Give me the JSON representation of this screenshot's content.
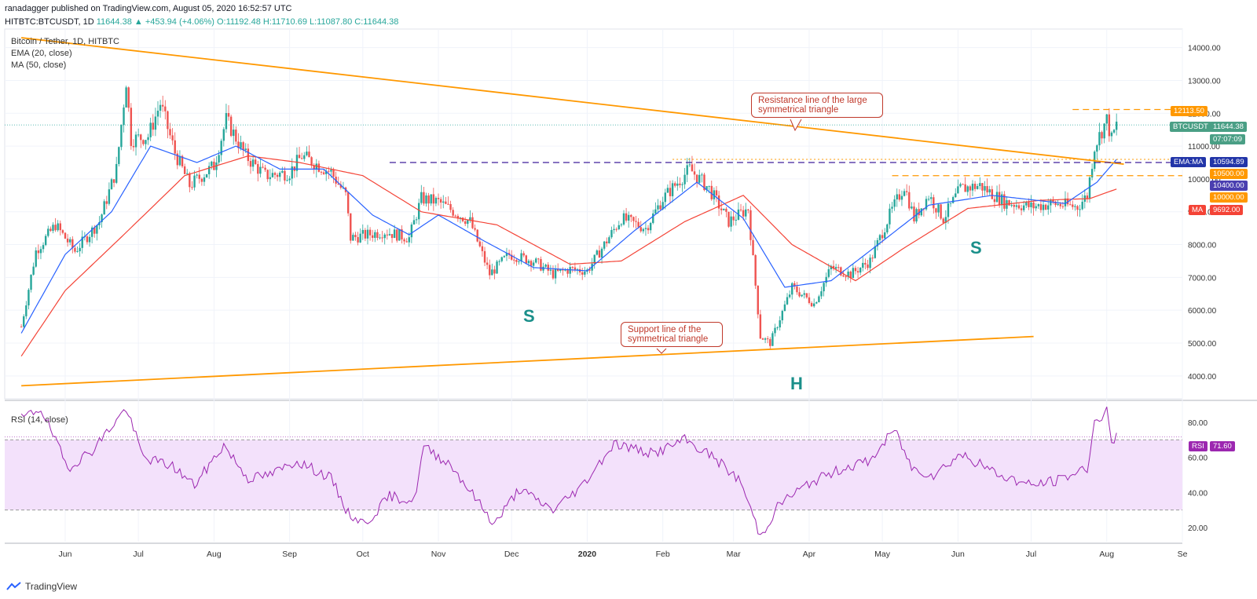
{
  "header": {
    "publisher": "ranadagger published on TradingView.com, August 05, 2020 16:52:57 UTC",
    "symbol": "HITBTC:BTCUSDT, 1D",
    "last": "11644.38",
    "change": "▲ +453.94 (+4.06%)",
    "ohlc": "O:11192.48 H:11710.69 L:11087.80 C:11644.38"
  },
  "legend": {
    "title": "Bitcoin / Tether, 1D, HITBTC",
    "ema": "EMA (20, close)",
    "ma": "MA (50, close)",
    "rsi": "RSI (14, close)"
  },
  "tags": {
    "resistance_level": "12113.50",
    "btc_label": "BTCUSDT",
    "btc_price": "11644.38",
    "countdown": "07:07:09",
    "ema_label": "EMA:MA",
    "ema_value": "10594.89",
    "level_10500": "10500.00",
    "level_10400": "10400.00",
    "level_10000": "10000.00",
    "ma_label": "MA",
    "ma_value": "9692.00",
    "rsi_label": "RSI",
    "rsi_value": "71.60"
  },
  "annotations": {
    "resistance": "Resistance line of the large symmetrical triangle",
    "support": "Support line of the symmetrical triangle",
    "s_left": "S",
    "h_mid": "H",
    "s_right": "S"
  },
  "footer": {
    "brand": "TradingView"
  },
  "colors": {
    "up": "#26a69a",
    "down": "#ef5350",
    "ema": "#2962ff",
    "ma": "#f44336",
    "trend": "#ff9800",
    "dashed_purple": "#3f1d9b",
    "rsi": "#9c27b0",
    "rsi_band": "#f3e1fb"
  },
  "chart_data": {
    "type": "candlestick",
    "price_axis": {
      "ticks": [
        4000,
        5000,
        6000,
        7000,
        8000,
        9000,
        10000,
        11000,
        12000,
        13000,
        14000
      ],
      "tick_labels": [
        "4000.00",
        "5000.00",
        "6000.00",
        "7000.00",
        "8000.00",
        "9000.00",
        "10000.00",
        "11000.00",
        "12000.00",
        "13000.00",
        "14000.00"
      ]
    },
    "rsi_axis": {
      "ticks": [
        20,
        40,
        60,
        80
      ],
      "tick_labels": [
        "20.00",
        "40.00",
        "60.00",
        "80.00"
      ],
      "upper": 70,
      "lower": 30
    },
    "x_axis": {
      "labels": [
        "Jun",
        "Jul",
        "Aug",
        "Sep",
        "Oct",
        "Nov",
        "Dec",
        "2020",
        "Feb",
        "Mar",
        "Apr",
        "May",
        "Jun",
        "Jul",
        "Aug",
        "Se"
      ],
      "dates": [
        "2019-06-01",
        "2019-07-01",
        "2019-08-01",
        "2019-09-01",
        "2019-10-01",
        "2019-11-01",
        "2019-12-01",
        "2020-01-01",
        "2020-02-01",
        "2020-03-01",
        "2020-04-01",
        "2020-05-01",
        "2020-06-01",
        "2020-07-01",
        "2020-08-01",
        "2020-09-01"
      ]
    },
    "close_path": [
      [
        "2019-05-14",
        5500
      ],
      [
        "2019-05-20",
        7800
      ],
      [
        "2019-05-28",
        8600
      ],
      [
        "2019-06-05",
        7800
      ],
      [
        "2019-06-15",
        8700
      ],
      [
        "2019-06-22",
        10300
      ],
      [
        "2019-06-26",
        13000
      ],
      [
        "2019-06-28",
        11200
      ],
      [
        "2019-07-05",
        11300
      ],
      [
        "2019-07-10",
        12300
      ],
      [
        "2019-07-16",
        10800
      ],
      [
        "2019-07-22",
        9800
      ],
      [
        "2019-08-01",
        10400
      ],
      [
        "2019-08-06",
        11800
      ],
      [
        "2019-08-14",
        10700
      ],
      [
        "2019-08-22",
        10100
      ],
      [
        "2019-09-01",
        10200
      ],
      [
        "2019-09-06",
        10700
      ],
      [
        "2019-09-18",
        10200
      ],
      [
        "2019-09-24",
        9500
      ],
      [
        "2019-09-26",
        8200
      ],
      [
        "2019-10-10",
        8400
      ],
      [
        "2019-10-20",
        8200
      ],
      [
        "2019-10-25",
        9400
      ],
      [
        "2019-11-01",
        9300
      ],
      [
        "2019-11-14",
        8700
      ],
      [
        "2019-11-22",
        7100
      ],
      [
        "2019-11-30",
        7700
      ],
      [
        "2019-12-10",
        7500
      ],
      [
        "2019-12-18",
        7100
      ],
      [
        "2019-12-25",
        7250
      ],
      [
        "2020-01-01",
        7200
      ],
      [
        "2020-01-08",
        8000
      ],
      [
        "2020-01-15",
        8800
      ],
      [
        "2020-01-25",
        8500
      ],
      [
        "2020-02-01",
        9400
      ],
      [
        "2020-02-12",
        10300
      ],
      [
        "2020-02-20",
        9700
      ],
      [
        "2020-02-28",
        8700
      ],
      [
        "2020-03-07",
        9100
      ],
      [
        "2020-03-12",
        5200
      ],
      [
        "2020-03-16",
        5000
      ],
      [
        "2020-03-25",
        6700
      ],
      [
        "2020-04-03",
        6200
      ],
      [
        "2020-04-10",
        7300
      ],
      [
        "2020-04-18",
        7100
      ],
      [
        "2020-04-26",
        7500
      ],
      [
        "2020-05-04",
        8900
      ],
      [
        "2020-05-10",
        9800
      ],
      [
        "2020-05-14",
        8800
      ],
      [
        "2020-05-20",
        9500
      ],
      [
        "2020-05-26",
        8800
      ],
      [
        "2020-06-02",
        9700
      ],
      [
        "2020-06-10",
        9800
      ],
      [
        "2020-06-20",
        9300
      ],
      [
        "2020-07-01",
        9150
      ],
      [
        "2020-07-10",
        9250
      ],
      [
        "2020-07-20",
        9150
      ],
      [
        "2020-07-24",
        9500
      ],
      [
        "2020-07-27",
        11000
      ],
      [
        "2020-08-01",
        11800
      ],
      [
        "2020-08-03",
        11200
      ],
      [
        "2020-08-05",
        11644
      ]
    ],
    "ema20": [
      [
        "2019-05-14",
        5300
      ],
      [
        "2019-06-01",
        7700
      ],
      [
        "2019-06-20",
        9000
      ],
      [
        "2019-07-06",
        11000
      ],
      [
        "2019-07-25",
        10500
      ],
      [
        "2019-08-10",
        11000
      ],
      [
        "2019-08-28",
        10300
      ],
      [
        "2019-09-15",
        10300
      ],
      [
        "2019-10-05",
        8900
      ],
      [
        "2019-10-20",
        8300
      ],
      [
        "2019-11-01",
        8900
      ],
      [
        "2019-11-20",
        8100
      ],
      [
        "2019-12-10",
        7300
      ],
      [
        "2020-01-01",
        7200
      ],
      [
        "2020-01-20",
        8400
      ],
      [
        "2020-02-15",
        9900
      ],
      [
        "2020-03-05",
        8800
      ],
      [
        "2020-03-22",
        6700
      ],
      [
        "2020-04-10",
        6900
      ],
      [
        "2020-05-01",
        8100
      ],
      [
        "2020-05-20",
        9200
      ],
      [
        "2020-06-15",
        9500
      ],
      [
        "2020-07-15",
        9250
      ],
      [
        "2020-07-28",
        9900
      ],
      [
        "2020-08-05",
        10595
      ]
    ],
    "ma50": [
      [
        "2019-05-14",
        4600
      ],
      [
        "2019-06-01",
        6600
      ],
      [
        "2019-06-25",
        8300
      ],
      [
        "2019-07-20",
        10100
      ],
      [
        "2019-08-15",
        10700
      ],
      [
        "2019-09-05",
        10500
      ],
      [
        "2019-10-01",
        10100
      ],
      [
        "2019-10-25",
        9000
      ],
      [
        "2019-11-25",
        8600
      ],
      [
        "2019-12-25",
        7400
      ],
      [
        "2020-01-15",
        7500
      ],
      [
        "2020-02-10",
        8700
      ],
      [
        "2020-03-05",
        9500
      ],
      [
        "2020-03-25",
        8000
      ],
      [
        "2020-04-20",
        6900
      ],
      [
        "2020-05-10",
        7900
      ],
      [
        "2020-06-05",
        9100
      ],
      [
        "2020-07-05",
        9350
      ],
      [
        "2020-07-25",
        9400
      ],
      [
        "2020-08-05",
        9692
      ]
    ],
    "rsi14": [
      [
        "2019-05-14",
        82
      ],
      [
        "2019-05-22",
        88
      ],
      [
        "2019-06-02",
        54
      ],
      [
        "2019-06-12",
        64
      ],
      [
        "2019-06-26",
        88
      ],
      [
        "2019-07-03",
        60
      ],
      [
        "2019-07-15",
        55
      ],
      [
        "2019-07-24",
        44
      ],
      [
        "2019-08-05",
        67
      ],
      [
        "2019-08-15",
        48
      ],
      [
        "2019-08-24",
        50
      ],
      [
        "2019-09-04",
        58
      ],
      [
        "2019-09-18",
        48
      ],
      [
        "2019-09-25",
        28
      ],
      [
        "2019-10-02",
        22
      ],
      [
        "2019-10-12",
        38
      ],
      [
        "2019-10-22",
        35
      ],
      [
        "2019-10-26",
        66
      ],
      [
        "2019-11-06",
        56
      ],
      [
        "2019-11-24",
        22
      ],
      [
        "2019-12-04",
        42
      ],
      [
        "2019-12-18",
        30
      ],
      [
        "2019-12-30",
        44
      ],
      [
        "2020-01-12",
        68
      ],
      [
        "2020-01-28",
        62
      ],
      [
        "2020-02-10",
        70
      ],
      [
        "2020-02-22",
        60
      ],
      [
        "2020-03-04",
        46
      ],
      [
        "2020-03-12",
        15
      ],
      [
        "2020-03-20",
        34
      ],
      [
        "2020-04-02",
        46
      ],
      [
        "2020-04-15",
        54
      ],
      [
        "2020-04-26",
        58
      ],
      [
        "2020-05-06",
        76
      ],
      [
        "2020-05-13",
        54
      ],
      [
        "2020-05-22",
        50
      ],
      [
        "2020-06-02",
        62
      ],
      [
        "2020-06-18",
        50
      ],
      [
        "2020-07-01",
        44
      ],
      [
        "2020-07-12",
        47
      ],
      [
        "2020-07-24",
        54
      ],
      [
        "2020-07-27",
        80
      ],
      [
        "2020-08-01",
        86
      ],
      [
        "2020-08-03",
        68
      ],
      [
        "2020-08-05",
        71.6
      ]
    ],
    "horizontal_levels": [
      12113.5,
      11644.38,
      10594.89,
      10500,
      10400,
      10000,
      9692
    ],
    "resistance_line": [
      [
        "2019-05-14",
        14300
      ],
      [
        "2020-08-08",
        10450
      ]
    ],
    "support_line": [
      [
        "2019-05-14",
        3700
      ],
      [
        "2020-07-02",
        5200
      ]
    ]
  }
}
